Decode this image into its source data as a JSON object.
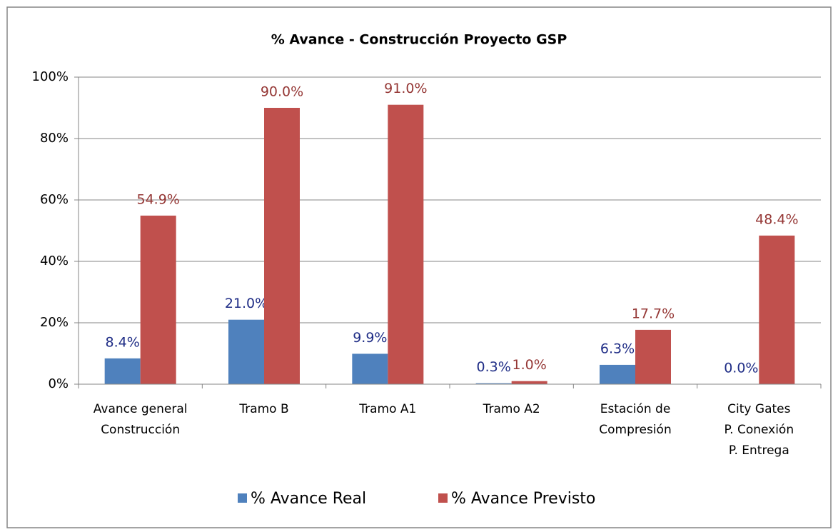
{
  "chart_data": {
    "type": "bar",
    "title": "% Avance - Construcción Proyecto GSP",
    "categories": [
      [
        "Avance general",
        "Construcción"
      ],
      [
        "Tramo B"
      ],
      [
        "Tramo A1"
      ],
      [
        "Tramo A2"
      ],
      [
        "Estación de",
        "Compresión"
      ],
      [
        "City Gates",
        "P. Conexión",
        "P. Entrega"
      ]
    ],
    "series": [
      {
        "name": "% Avance Real",
        "color": "#4f81bd",
        "label_color": "#1f2d86",
        "values": [
          8.4,
          21.0,
          9.9,
          0.3,
          6.3,
          0.0
        ],
        "value_labels": [
          "8.4%",
          "21.0%",
          "9.9%",
          "0.3%",
          "6.3%",
          "0.0%"
        ]
      },
      {
        "name": "% Avance Previsto",
        "color": "#c0504d",
        "label_color": "#953735",
        "values": [
          54.9,
          90.0,
          91.0,
          1.0,
          17.7,
          48.4
        ],
        "value_labels": [
          "54.9%",
          "90.0%",
          "91.0%",
          "1.0%",
          "17.7%",
          "48.4%"
        ]
      }
    ],
    "ylim": [
      0,
      100
    ],
    "yticks": [
      {
        "value": 0,
        "label": "0%"
      },
      {
        "value": 20,
        "label": "20%"
      },
      {
        "value": 40,
        "label": "40%"
      },
      {
        "value": 60,
        "label": "60%"
      },
      {
        "value": 80,
        "label": "80%"
      },
      {
        "value": 100,
        "label": "100%"
      }
    ],
    "grid": true,
    "legend": "bottom"
  }
}
